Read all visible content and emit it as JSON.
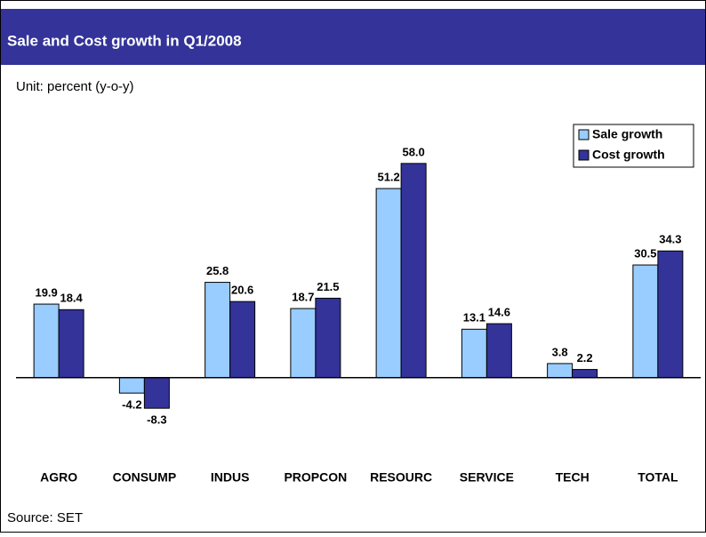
{
  "chart_data": {
    "type": "bar",
    "title": "Sale and Cost growth in Q1/2008",
    "subtitle": "Unit: percent (y-o-y)",
    "source": "Source: SET",
    "categories": [
      "AGRO",
      "CONSUMP",
      "INDUS",
      "PROPCON",
      "RESOURC",
      "SERVICE",
      "TECH",
      "TOTAL"
    ],
    "series": [
      {
        "name": "Sale growth",
        "color": "#99ccff",
        "values": [
          19.9,
          -4.2,
          25.8,
          18.7,
          51.2,
          13.1,
          3.8,
          30.5
        ],
        "value_labels": [
          "19.9",
          "-4.2",
          "25.8",
          "18.7",
          "51.2",
          "13.1",
          "3.8",
          "30.5"
        ]
      },
      {
        "name": "Cost growth",
        "color": "#333399",
        "values": [
          18.4,
          -8.3,
          20.6,
          21.5,
          58.0,
          14.6,
          2.2,
          34.3
        ],
        "value_labels": [
          "18.4",
          "-8.3",
          "20.6",
          "21.5",
          "58.0",
          "14.6",
          "2.2",
          "34.3"
        ]
      }
    ],
    "ylim": [
      -15,
      70
    ],
    "legend": "upper right"
  }
}
